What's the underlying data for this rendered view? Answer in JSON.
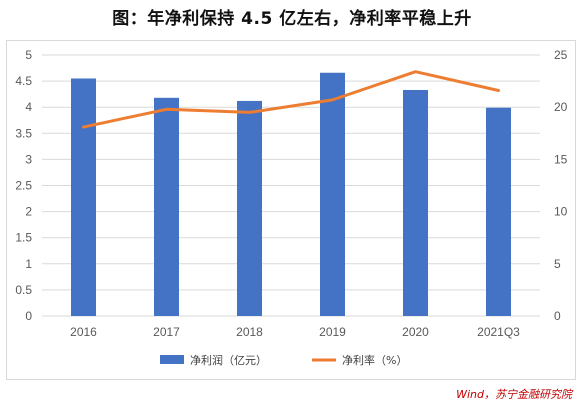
{
  "title": "图：年净利保持 4.5 亿左右，净利率平稳上升",
  "source": "Wind，苏宁金融研究院",
  "colors": {
    "bar": "#4472c4",
    "line": "#ed7d31",
    "grid": "#d9d9d9",
    "tick": "#595959",
    "source": "#c00000"
  },
  "chart_data": {
    "type": "bar",
    "categories": [
      "2016",
      "2017",
      "2018",
      "2019",
      "2020",
      "2021Q3"
    ],
    "series": [
      {
        "name": "净利润（亿元）",
        "type": "bar",
        "axis": "left",
        "values": [
          4.55,
          4.18,
          4.12,
          4.66,
          4.33,
          3.99
        ]
      },
      {
        "name": "净利率（%）",
        "type": "line",
        "axis": "right",
        "values": [
          18.1,
          19.8,
          19.5,
          20.7,
          23.4,
          21.6
        ]
      }
    ],
    "ylim_left": [
      0,
      5
    ],
    "yticks_left": [
      "0",
      "0.5",
      "1",
      "1.5",
      "2",
      "2.5",
      "3",
      "3.5",
      "4",
      "4.5",
      "5"
    ],
    "ylim_right": [
      0,
      25
    ],
    "yticks_right": [
      "0",
      "5",
      "10",
      "15",
      "20",
      "25"
    ],
    "grid": true,
    "legend_position": "bottom"
  }
}
